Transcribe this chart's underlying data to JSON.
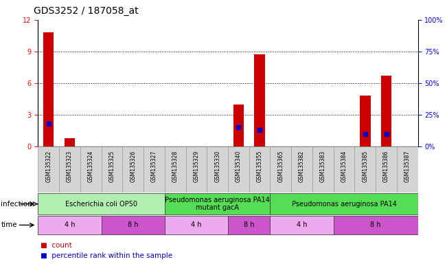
{
  "title": "GDS3252 / 187058_at",
  "samples": [
    "GSM135322",
    "GSM135323",
    "GSM135324",
    "GSM135325",
    "GSM135326",
    "GSM135327",
    "GSM135328",
    "GSM135329",
    "GSM135330",
    "GSM135340",
    "GSM135355",
    "GSM135365",
    "GSM135382",
    "GSM135383",
    "GSM135384",
    "GSM135385",
    "GSM135386",
    "GSM135387"
  ],
  "counts": [
    10.8,
    0.8,
    0,
    0,
    0,
    0,
    0,
    0,
    0,
    4.0,
    8.7,
    0,
    0,
    0,
    0,
    4.8,
    6.7,
    0
  ],
  "percentile": [
    18,
    0,
    0,
    0,
    0,
    0,
    0,
    0,
    0,
    15,
    13,
    0,
    0,
    0,
    0,
    10,
    10,
    0
  ],
  "ylim_left": [
    0,
    12
  ],
  "ylim_right": [
    0,
    100
  ],
  "yticks_left": [
    0,
    3,
    6,
    9,
    12
  ],
  "yticks_right": [
    0,
    25,
    50,
    75,
    100
  ],
  "ytick_labels_right": [
    "0%",
    "25%",
    "50%",
    "75%",
    "100%"
  ],
  "infection_groups": [
    {
      "label": "Escherichia coli OP50",
      "start": 0,
      "end": 6,
      "color": "#b2f0b2"
    },
    {
      "label": "Pseudomonas aeruginosa PA14\nmutant gacA",
      "start": 6,
      "end": 11,
      "color": "#55dd55"
    },
    {
      "label": "Pseudomonas aeruginosa PA14",
      "start": 11,
      "end": 18,
      "color": "#55dd55"
    }
  ],
  "time_groups": [
    {
      "label": "4 h",
      "start": 0,
      "end": 3,
      "color": "#eeaaee"
    },
    {
      "label": "8 h",
      "start": 3,
      "end": 6,
      "color": "#cc55cc"
    },
    {
      "label": "4 h",
      "start": 6,
      "end": 9,
      "color": "#eeaaee"
    },
    {
      "label": "8 h",
      "start": 9,
      "end": 11,
      "color": "#cc55cc"
    },
    {
      "label": "4 h",
      "start": 11,
      "end": 14,
      "color": "#eeaaee"
    },
    {
      "label": "8 h",
      "start": 14,
      "end": 18,
      "color": "#cc55cc"
    }
  ],
  "bar_color": "#cc0000",
  "dot_color": "#0000cc",
  "count_scale": 12,
  "percentile_scale": 100,
  "bar_width": 0.5,
  "dot_size": 18,
  "grid_color": "#000000",
  "bg_color": "#ffffff",
  "title_fontsize": 10,
  "tick_fontsize": 7,
  "label_fontsize": 7.5,
  "sample_fontsize": 5.5,
  "row_fontsize": 7,
  "annotation_fontsize": 7.5
}
